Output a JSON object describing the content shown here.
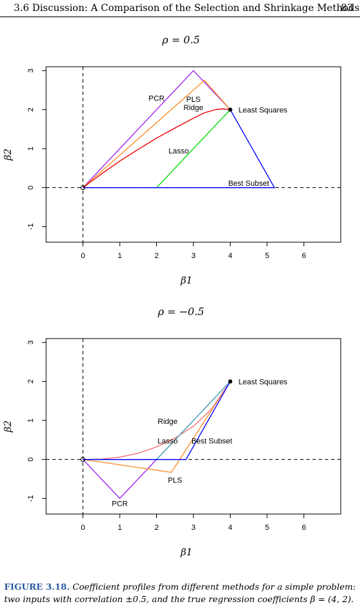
{
  "header": {
    "section_title": "3.6 Discussion: A Comparison of the Selection and Shrinkage Methods",
    "page_number": "83"
  },
  "chart_data": [
    {
      "type": "line",
      "title": "ρ = 0.5",
      "xlabel": "β1",
      "ylabel": "β2",
      "xlim": [
        -1,
        7
      ],
      "ylim": [
        -1.4,
        3.1
      ],
      "xticks": [
        "0",
        "1",
        "2",
        "3",
        "4",
        "5",
        "6"
      ],
      "yticks": [
        "-1",
        "0",
        "1",
        "2",
        "3"
      ],
      "series": [
        {
          "name": "PCR",
          "color": "#a020f0",
          "points": [
            [
              0,
              0
            ],
            [
              3,
              3
            ],
            [
              4,
              2
            ]
          ]
        },
        {
          "name": "PLS",
          "color": "#ff8c28",
          "points": [
            [
              0,
              0
            ],
            [
              3.3,
              2.75
            ],
            [
              4,
              2
            ]
          ]
        },
        {
          "name": "Ridge",
          "color": "#ee0000",
          "points": [
            [
              0,
              0
            ],
            [
              0.5,
              0.35
            ],
            [
              1,
              0.68
            ],
            [
              1.5,
              0.98
            ],
            [
              2,
              1.27
            ],
            [
              2.5,
              1.53
            ],
            [
              3,
              1.78
            ],
            [
              3.3,
              1.92
            ],
            [
              3.6,
              2.0
            ],
            [
              3.8,
              2.02
            ],
            [
              4,
              2
            ]
          ]
        },
        {
          "name": "Lasso",
          "color": "#00dd00",
          "points": [
            [
              2,
              0
            ],
            [
              4,
              2
            ]
          ]
        },
        {
          "name": "Best Subset",
          "color": "#0000ff",
          "points": [
            [
              0,
              0
            ],
            [
              5.2,
              0
            ],
            [
              4,
              2
            ]
          ]
        }
      ],
      "annotations": [
        {
          "text": "Least Squares",
          "x": 4,
          "y": 2
        },
        {
          "text": "PCR",
          "x": 2.0,
          "y": 2.3
        },
        {
          "text": "PLS",
          "x": 3.0,
          "y": 2.27
        },
        {
          "text": "Ridge",
          "x": 3.0,
          "y": 2.06
        },
        {
          "text": "Lasso",
          "x": 2.6,
          "y": 0.95
        },
        {
          "text": "Best Subset",
          "x": 4.5,
          "y": 0.12
        }
      ],
      "reference_lines": "dashed lines at x = 0 and y = 0"
    },
    {
      "type": "line",
      "title": "ρ = −0.5",
      "xlabel": "β1",
      "ylabel": "β2",
      "xlim": [
        -1,
        7
      ],
      "ylim": [
        -1.4,
        3.1
      ],
      "xticks": [
        "0",
        "1",
        "2",
        "3",
        "4",
        "5",
        "6"
      ],
      "yticks": [
        "-1",
        "0",
        "1",
        "2",
        "3"
      ],
      "series": [
        {
          "name": "PCR",
          "color": "#a020f0",
          "points": [
            [
              0,
              0
            ],
            [
              1,
              -1
            ],
            [
              4,
              2
            ]
          ]
        },
        {
          "name": "PLS",
          "color": "#ff8c28",
          "points": [
            [
              0,
              0
            ],
            [
              2.4,
              -0.33
            ],
            [
              4,
              2
            ]
          ]
        },
        {
          "name": "Ridge",
          "color": "#f07070",
          "points": [
            [
              0,
              0
            ],
            [
              0.5,
              0.01
            ],
            [
              1,
              0.06
            ],
            [
              1.5,
              0.16
            ],
            [
              2,
              0.32
            ],
            [
              2.5,
              0.55
            ],
            [
              3,
              0.85
            ],
            [
              3.5,
              1.3
            ],
            [
              4,
              2
            ]
          ]
        },
        {
          "name": "Lasso",
          "color": "#40b0b0",
          "points": [
            [
              0,
              0
            ],
            [
              2,
              0
            ],
            [
              4,
              2
            ]
          ]
        },
        {
          "name": "Best Subset",
          "color": "#0000ff",
          "points": [
            [
              0,
              0
            ],
            [
              2.8,
              0
            ],
            [
              4,
              2
            ]
          ]
        }
      ],
      "annotations": [
        {
          "text": "Least Squares",
          "x": 4,
          "y": 2
        },
        {
          "text": "Ridge",
          "x": 2.3,
          "y": 0.98
        },
        {
          "text": "Lasso",
          "x": 2.3,
          "y": 0.48
        },
        {
          "text": "Best Subset",
          "x": 3.5,
          "y": 0.48
        },
        {
          "text": "PLS",
          "x": 2.5,
          "y": -0.53
        },
        {
          "text": "PCR",
          "x": 1.0,
          "y": -1.13
        }
      ],
      "reference_lines": "dashed lines at x = 0 and y = 0"
    }
  ],
  "caption": {
    "label": "FIGURE 3.18.",
    "text": "Coefficient profiles from different methods for a simple problem: two inputs with correlation ±0.5, and the true regression coefficients β = (4, 2)."
  }
}
